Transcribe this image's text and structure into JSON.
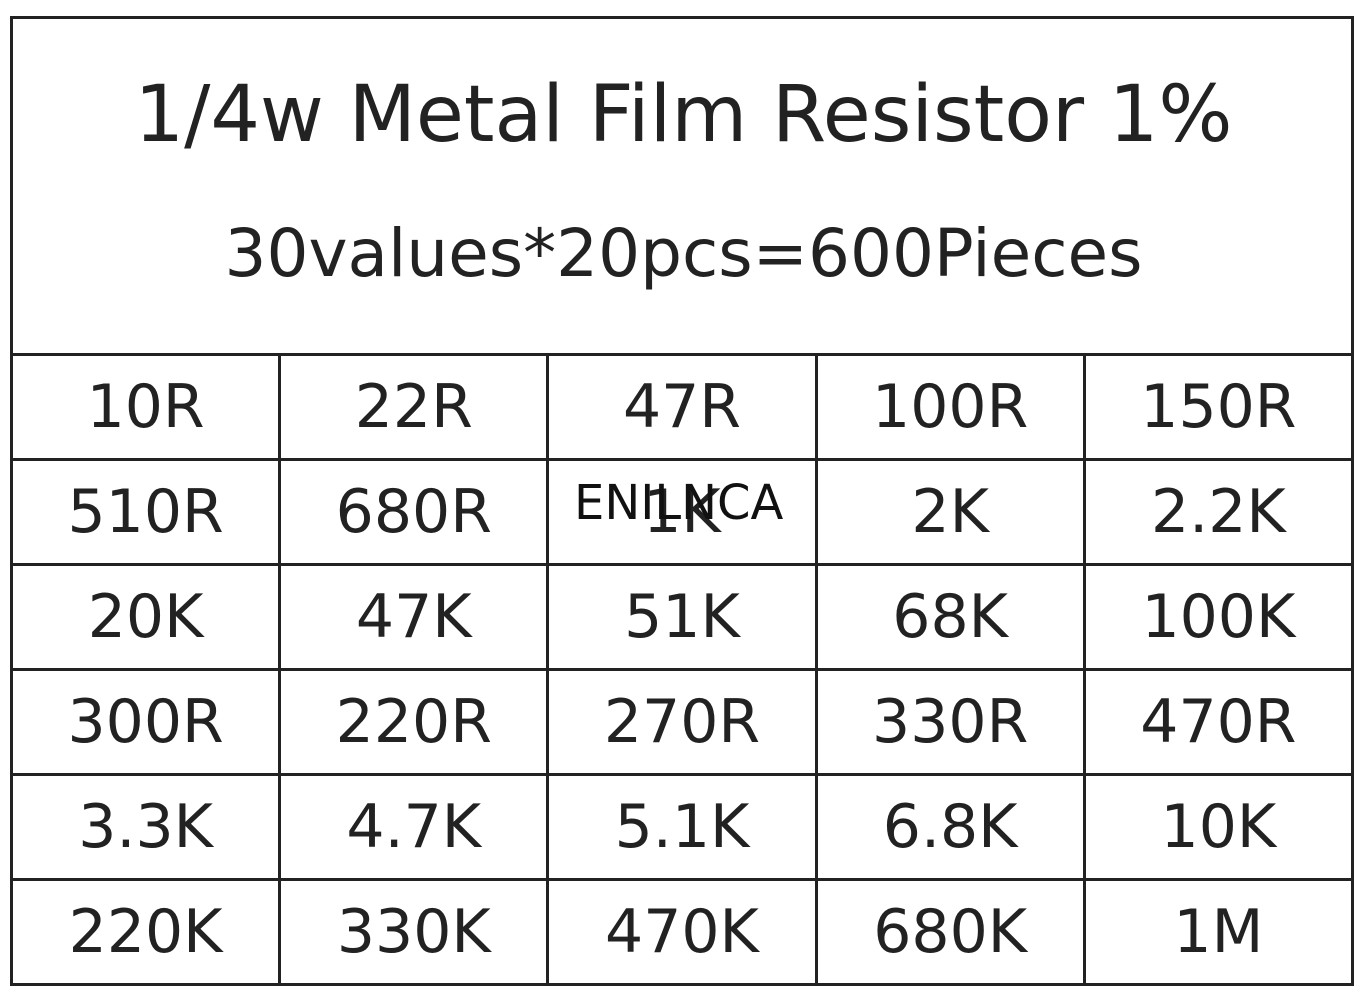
{
  "header": {
    "title": "1/4w Metal Film Resistor 1%",
    "subtitle": "30values*20pcs=600Pieces"
  },
  "watermark": "ENILNCA",
  "table": {
    "rows": [
      [
        "10R",
        "22R",
        "47R",
        "100R",
        "150R"
      ],
      [
        "510R",
        "680R",
        "1K",
        "2K",
        "2.2K"
      ],
      [
        "20K",
        "47K",
        "51K",
        "68K",
        "100K"
      ],
      [
        "300R",
        "220R",
        "270R",
        "330R",
        "470R"
      ],
      [
        "3.3K",
        "4.7K",
        "5.1K",
        "6.8K",
        "10K"
      ],
      [
        "220K",
        "330K",
        "470K",
        "680K",
        "1M"
      ]
    ]
  }
}
